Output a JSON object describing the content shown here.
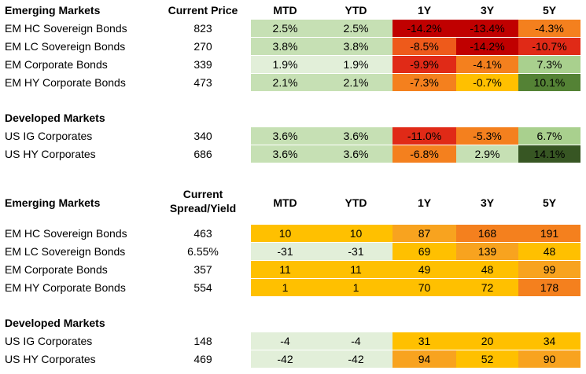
{
  "colors": {
    "green_light": "#e2efd9",
    "green_mid": "#c6e0b4",
    "green_dark": "#548235",
    "green_darkest": "#375623",
    "yellow": "#ffc000",
    "orange_light": "#f8a31f",
    "orange": "#f4801e",
    "red_orange": "#ee5a1b",
    "red": "#e02a17",
    "red_dark": "#c00000"
  },
  "headers": {
    "price_sections": [
      "Emerging Markets",
      "Developed Markets"
    ],
    "current_price": "Current Price",
    "current_spread_line1": "Current",
    "current_spread_line2": "Spread/Yield",
    "mtd": "MTD",
    "ytd": "YTD",
    "y1": "1Y",
    "y3": "3Y",
    "y5": "5Y"
  },
  "price_table": {
    "em_title": "Emerging Markets",
    "em_rows": [
      {
        "name": "EM HC Sovereign Bonds",
        "value": "823",
        "mtd": "2.5%",
        "ytd": "2.5%",
        "y1": "-14.2%",
        "y3": "-13.4%",
        "y5": "-4.3%",
        "colors": [
          "#c6e0b4",
          "#c6e0b4",
          "#c00000",
          "#c00000",
          "#f4801e"
        ]
      },
      {
        "name": "EM LC Sovereign Bonds",
        "value": "270",
        "mtd": "3.8%",
        "ytd": "3.8%",
        "y1": "-8.5%",
        "y3": "-14.2%",
        "y5": "-10.7%",
        "colors": [
          "#c6e0b4",
          "#c6e0b4",
          "#ee5a1b",
          "#c00000",
          "#e02a17"
        ]
      },
      {
        "name": "EM Corporate Bonds",
        "value": "339",
        "mtd": "1.9%",
        "ytd": "1.9%",
        "y1": "-9.9%",
        "y3": "-4.1%",
        "y5": "7.3%",
        "colors": [
          "#e2efd9",
          "#e2efd9",
          "#e02a17",
          "#f4801e",
          "#a9d08e"
        ]
      },
      {
        "name": "EM HY Corporate Bonds",
        "value": "473",
        "mtd": "2.1%",
        "ytd": "2.1%",
        "y1": "-7.3%",
        "y3": "-0.7%",
        "y5": "10.1%",
        "colors": [
          "#c6e0b4",
          "#c6e0b4",
          "#f4801e",
          "#ffc000",
          "#548235"
        ]
      }
    ],
    "dm_title": "Developed Markets",
    "dm_rows": [
      {
        "name": "US IG Corporates",
        "value": "340",
        "mtd": "3.6%",
        "ytd": "3.6%",
        "y1": "-11.0%",
        "y3": "-5.3%",
        "y5": "6.7%",
        "colors": [
          "#c6e0b4",
          "#c6e0b4",
          "#e02a17",
          "#f4801e",
          "#a9d08e"
        ]
      },
      {
        "name": "US HY Corporates",
        "value": "686",
        "mtd": "3.6%",
        "ytd": "3.6%",
        "y1": "-6.8%",
        "y3": "2.9%",
        "y5": "14.1%",
        "colors": [
          "#c6e0b4",
          "#c6e0b4",
          "#f4801e",
          "#c6e0b4",
          "#375623"
        ]
      }
    ]
  },
  "spread_table": {
    "em_title": "Emerging Markets",
    "em_rows": [
      {
        "name": "EM HC Sovereign Bonds",
        "value": "463",
        "mtd": "10",
        "ytd": "10",
        "y1": "87",
        "y3": "168",
        "y5": "191",
        "colors": [
          "#ffc000",
          "#ffc000",
          "#f8a31f",
          "#f4801e",
          "#f4801e"
        ]
      },
      {
        "name": "EM LC Sovereign Bonds",
        "value": "6.55%",
        "mtd": "-31",
        "ytd": "-31",
        "y1": "69",
        "y3": "139",
        "y5": "48",
        "colors": [
          "#e2efd9",
          "#e2efd9",
          "#ffc000",
          "#f8a31f",
          "#ffc000"
        ]
      },
      {
        "name": "EM Corporate Bonds",
        "value": "357",
        "mtd": "11",
        "ytd": "11",
        "y1": "49",
        "y3": "48",
        "y5": "99",
        "colors": [
          "#ffc000",
          "#ffc000",
          "#ffc000",
          "#ffc000",
          "#f8a31f"
        ]
      },
      {
        "name": "EM HY Corporate Bonds",
        "value": "554",
        "mtd": "1",
        "ytd": "1",
        "y1": "70",
        "y3": "72",
        "y5": "178",
        "colors": [
          "#ffc000",
          "#ffc000",
          "#ffc000",
          "#ffc000",
          "#f4801e"
        ]
      }
    ],
    "dm_title": "Developed Markets",
    "dm_rows": [
      {
        "name": "US IG Corporates",
        "value": "148",
        "mtd": "-4",
        "ytd": "-4",
        "y1": "31",
        "y3": "20",
        "y5": "34",
        "colors": [
          "#e2efd9",
          "#e2efd9",
          "#ffc000",
          "#ffc000",
          "#ffc000"
        ]
      },
      {
        "name": "US HY Corporates",
        "value": "469",
        "mtd": "-42",
        "ytd": "-42",
        "y1": "94",
        "y3": "52",
        "y5": "90",
        "colors": [
          "#e2efd9",
          "#e2efd9",
          "#f8a31f",
          "#ffc000",
          "#f8a31f"
        ]
      }
    ]
  }
}
